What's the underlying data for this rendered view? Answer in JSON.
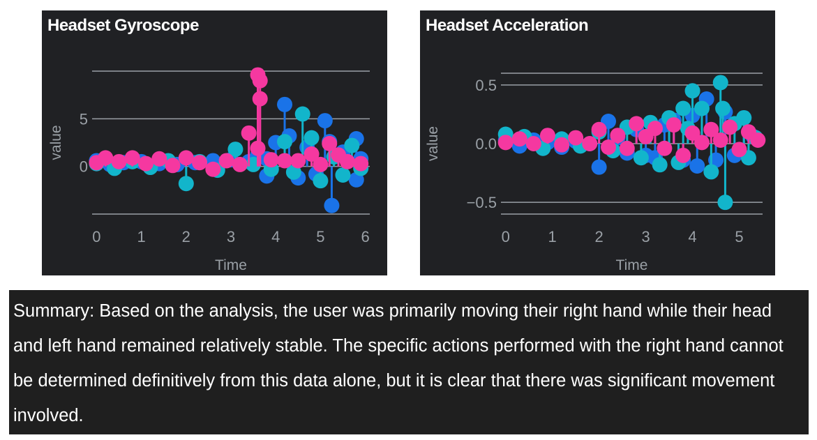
{
  "charts": {
    "gyro": {
      "title": "Headset Gyroscope"
    },
    "accel": {
      "title": "Headset Acceleration"
    }
  },
  "summary": {
    "text": "Summary: Based on the analysis, the user was primarily moving their right hand while their head and left hand remained relatively stable. The specific actions performed with the right hand cannot be determined definitively from this data alone, but it is clear that there was significant movement involved."
  },
  "colors": {
    "panel_bg": "#202124",
    "grid": "#9aa0a6",
    "series_blue": "#1a73e8",
    "series_cyan": "#12b5cb",
    "series_pink": "#f538a0"
  },
  "chart_data": [
    {
      "type": "scatter",
      "title": "Headset Gyroscope",
      "xlabel": "Time",
      "ylabel": "value",
      "xlim": [
        -0.1,
        6.1
      ],
      "ylim": [
        -5,
        10
      ],
      "x_ticks": [
        0,
        1,
        2,
        3,
        4,
        5,
        6
      ],
      "y_ticks": [
        0,
        5
      ],
      "grid": true,
      "series": [
        {
          "color": "#1a73e8",
          "points": [
            [
              0.0,
              0.6
            ],
            [
              0.3,
              0.2
            ],
            [
              0.6,
              0.4
            ],
            [
              1.0,
              0.5
            ],
            [
              1.4,
              0.3
            ],
            [
              1.8,
              0.2
            ],
            [
              2.2,
              0.4
            ],
            [
              2.6,
              0.6
            ],
            [
              3.0,
              0.7
            ],
            [
              3.4,
              0.5
            ],
            [
              3.6,
              1.2
            ],
            [
              3.8,
              0.8
            ],
            [
              3.8,
              -1.0
            ],
            [
              4.0,
              2.5
            ],
            [
              4.2,
              6.5
            ],
            [
              4.3,
              3.2
            ],
            [
              4.5,
              -1.2
            ],
            [
              4.7,
              2.0
            ],
            [
              4.9,
              -0.8
            ],
            [
              5.1,
              4.8
            ],
            [
              5.2,
              2.6
            ],
            [
              5.25,
              -4.1
            ],
            [
              5.5,
              1.5
            ],
            [
              5.8,
              2.9
            ],
            [
              5.8,
              -1.4
            ],
            [
              5.9,
              0.8
            ]
          ]
        },
        {
          "color": "#12b5cb",
          "points": [
            [
              0.0,
              0.3
            ],
            [
              0.4,
              -0.2
            ],
            [
              0.8,
              0.5
            ],
            [
              1.2,
              -0.1
            ],
            [
              1.6,
              0.6
            ],
            [
              2.0,
              -1.8
            ],
            [
              2.3,
              0.5
            ],
            [
              2.7,
              -0.4
            ],
            [
              3.1,
              1.8
            ],
            [
              3.5,
              0.2
            ],
            [
              3.9,
              -0.3
            ],
            [
              4.2,
              2.6
            ],
            [
              4.4,
              -0.6
            ],
            [
              4.6,
              5.5
            ],
            [
              4.8,
              3.0
            ],
            [
              5.0,
              -1.5
            ],
            [
              5.3,
              1.0
            ],
            [
              5.5,
              -0.9
            ],
            [
              5.7,
              2.2
            ],
            [
              5.9,
              -0.2
            ]
          ]
        },
        {
          "color": "#f538a0",
          "points": [
            [
              0.0,
              0.4
            ],
            [
              0.2,
              0.9
            ],
            [
              0.5,
              0.5
            ],
            [
              0.8,
              0.9
            ],
            [
              1.1,
              0.3
            ],
            [
              1.4,
              0.8
            ],
            [
              1.7,
              0.1
            ],
            [
              2.0,
              0.9
            ],
            [
              2.3,
              0.4
            ],
            [
              2.6,
              -0.3
            ],
            [
              2.9,
              0.6
            ],
            [
              3.2,
              0.2
            ],
            [
              3.4,
              3.5
            ],
            [
              3.6,
              9.6
            ],
            [
              3.65,
              9.0
            ],
            [
              3.65,
              7.1
            ],
            [
              3.6,
              1.9
            ],
            [
              3.9,
              0.7
            ],
            [
              4.2,
              0.6
            ],
            [
              4.5,
              0.6
            ],
            [
              4.8,
              1.3
            ],
            [
              5.0,
              0.2
            ],
            [
              5.2,
              2.4
            ],
            [
              5.4,
              1.2
            ],
            [
              5.6,
              0.5
            ],
            [
              5.9,
              0.3
            ]
          ]
        }
      ]
    },
    {
      "type": "scatter",
      "title": "Headset Acceleration",
      "xlabel": "Time",
      "ylabel": "value",
      "xlim": [
        -0.1,
        5.5
      ],
      "ylim": [
        -0.6,
        0.6
      ],
      "x_ticks": [
        0,
        1,
        2,
        3,
        4,
        5
      ],
      "y_ticks": [
        -0.5,
        0.0,
        0.5
      ],
      "grid": true,
      "series": [
        {
          "color": "#1a73e8",
          "points": [
            [
              0.0,
              0.03
            ],
            [
              0.3,
              -0.02
            ],
            [
              0.6,
              0.03
            ],
            [
              0.9,
              0.01
            ],
            [
              1.2,
              -0.03
            ],
            [
              1.5,
              0.02
            ],
            [
              1.8,
              0.0
            ],
            [
              2.0,
              -0.2
            ],
            [
              2.2,
              0.19
            ],
            [
              2.4,
              0.05
            ],
            [
              2.6,
              -0.08
            ],
            [
              2.8,
              0.12
            ],
            [
              3.0,
              -0.1
            ],
            [
              3.2,
              -0.12
            ],
            [
              3.4,
              0.16
            ],
            [
              3.6,
              0.2
            ],
            [
              3.8,
              -0.14
            ],
            [
              4.0,
              0.24
            ],
            [
              4.1,
              -0.19
            ],
            [
              4.3,
              0.38
            ],
            [
              4.5,
              -0.14
            ],
            [
              4.7,
              0.27
            ],
            [
              4.9,
              -0.1
            ],
            [
              5.1,
              0.22
            ],
            [
              5.3,
              0.06
            ]
          ]
        },
        {
          "color": "#12b5cb",
          "points": [
            [
              0.0,
              0.08
            ],
            [
              0.4,
              0.06
            ],
            [
              0.8,
              -0.04
            ],
            [
              1.2,
              0.04
            ],
            [
              1.6,
              -0.02
            ],
            [
              2.0,
              0.1
            ],
            [
              2.3,
              -0.06
            ],
            [
              2.6,
              0.14
            ],
            [
              2.9,
              -0.12
            ],
            [
              3.1,
              0.18
            ],
            [
              3.3,
              -0.18
            ],
            [
              3.5,
              0.22
            ],
            [
              3.7,
              -0.16
            ],
            [
              3.8,
              0.3
            ],
            [
              3.9,
              0.13
            ],
            [
              4.0,
              0.45
            ],
            [
              4.2,
              0.3
            ],
            [
              4.4,
              -0.24
            ],
            [
              4.6,
              0.52
            ],
            [
              4.65,
              0.3
            ],
            [
              4.7,
              -0.5
            ],
            [
              4.9,
              0.17
            ],
            [
              5.1,
              0.22
            ],
            [
              5.2,
              -0.12
            ],
            [
              5.35,
              0.05
            ]
          ]
        },
        {
          "color": "#f538a0",
          "points": [
            [
              0.0,
              0.01
            ],
            [
              0.3,
              0.04
            ],
            [
              0.6,
              0.0
            ],
            [
              0.9,
              0.07
            ],
            [
              1.2,
              -0.01
            ],
            [
              1.5,
              0.05
            ],
            [
              1.8,
              0.0
            ],
            [
              2.0,
              0.12
            ],
            [
              2.2,
              -0.03
            ],
            [
              2.4,
              0.07
            ],
            [
              2.6,
              -0.04
            ],
            [
              2.8,
              0.17
            ],
            [
              3.0,
              0.06
            ],
            [
              3.2,
              0.13
            ],
            [
              3.4,
              -0.04
            ],
            [
              3.6,
              0.16
            ],
            [
              3.8,
              -0.1
            ],
            [
              4.0,
              0.09
            ],
            [
              4.2,
              0.01
            ],
            [
              4.4,
              0.12
            ],
            [
              4.6,
              0.03
            ],
            [
              4.8,
              0.14
            ],
            [
              5.0,
              -0.05
            ],
            [
              5.2,
              0.1
            ],
            [
              5.4,
              0.03
            ]
          ]
        }
      ]
    }
  ]
}
